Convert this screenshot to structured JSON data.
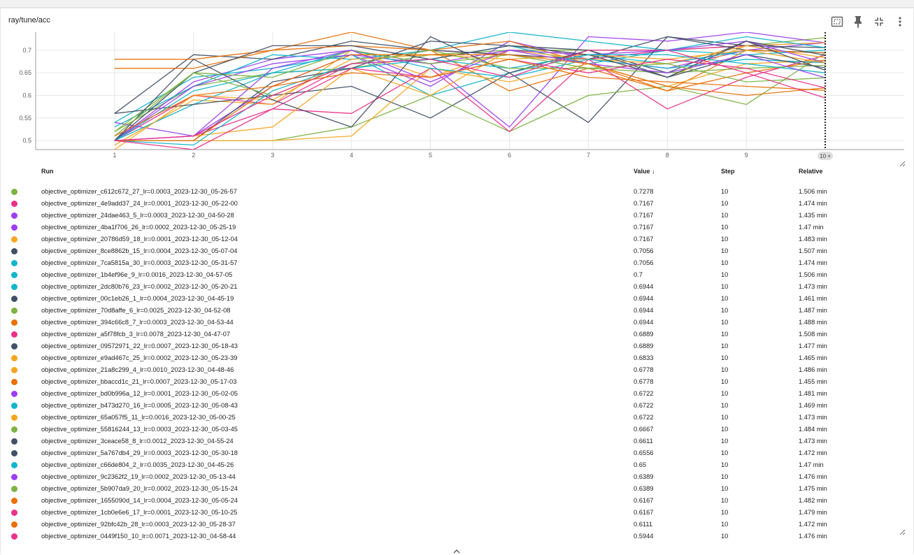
{
  "card": {
    "title": "ray/tune/acc"
  },
  "toolbar": [
    "fit-domain-icon",
    "pin-icon",
    "collapse-icon",
    "more-vert-icon"
  ],
  "table": {
    "headers": {
      "run": "Run",
      "value": "Value ↓",
      "step": "Step",
      "relative": "Relative"
    },
    "rows": [
      {
        "run": "objective_optimizer_c612c672_27_lr=0.0003_2023-12-30_05-26-57",
        "value": "0.7278",
        "step": "10",
        "relative": "1.506 min",
        "color": "#7cb342"
      },
      {
        "run": "objective_optimizer_4e9add37_24_lr=0.0001_2023-12-30_05-22-00",
        "value": "0.7167",
        "step": "10",
        "relative": "1.474 min",
        "color": "#e8328a"
      },
      {
        "run": "objective_optimizer_24dae463_5_lr=0.0003_2023-12-30_04-50-28",
        "value": "0.7167",
        "step": "10",
        "relative": "1.435 min",
        "color": "#9c3ff0"
      },
      {
        "run": "objective_optimizer_4ba1f706_26_lr=0.0002_2023-12-30_05-25-19",
        "value": "0.7167",
        "step": "10",
        "relative": "1.47 min",
        "color": "#9c3ff0"
      },
      {
        "run": "objective_optimizer_20786d59_18_lr=0.0001_2023-12-30_05-12-04",
        "value": "0.7167",
        "step": "10",
        "relative": "1.483 min",
        "color": "#f5a623"
      },
      {
        "run": "objective_optimizer_8ce8862b_15_lr=0.0004_2023-12-30_05-07-04",
        "value": "0.7056",
        "step": "10",
        "relative": "1.507 min",
        "color": "#425066"
      },
      {
        "run": "objective_optimizer_7ca5815a_30_lr=0.0003_2023-12-30_05-31-57",
        "value": "0.7056",
        "step": "10",
        "relative": "1.474 min",
        "color": "#12b5cb"
      },
      {
        "run": "objective_optimizer_1b4ef96e_9_lr=0.0016_2023-12-30_04-57-05",
        "value": "0.7",
        "step": "10",
        "relative": "1.506 min",
        "color": "#12b5cb"
      },
      {
        "run": "objective_optimizer_2dc80b76_23_lr=0.0002_2023-12-30_05-20-21",
        "value": "0.6944",
        "step": "10",
        "relative": "1.473 min",
        "color": "#12b5cb"
      },
      {
        "run": "objective_optimizer_00c1eb26_1_lr=0.0004_2023-12-30_04-45-19",
        "value": "0.6944",
        "step": "10",
        "relative": "1.461 min",
        "color": "#425066"
      },
      {
        "run": "objective_optimizer_70d8affe_6_lr=0.0025_2023-12-30_04-52-08",
        "value": "0.6944",
        "step": "10",
        "relative": "1.487 min",
        "color": "#7cb342"
      },
      {
        "run": "objective_optimizer_394c66c8_7_lr=0.0003_2023-12-30_04-53-44",
        "value": "0.6944",
        "step": "10",
        "relative": "1.488 min",
        "color": "#e8710a"
      },
      {
        "run": "objective_optimizer_a5f78fcb_3_lr=0.0078_2023-12-30_04-47-07",
        "value": "0.6889",
        "step": "10",
        "relative": "1.508 min",
        "color": "#e8328a"
      },
      {
        "run": "objective_optimizer_09572971_22_lr=0.0007_2023-12-30_05-18-43",
        "value": "0.6889",
        "step": "10",
        "relative": "1.477 min",
        "color": "#425066"
      },
      {
        "run": "objective_optimizer_e9ad467c_25_lr=0.0002_2023-12-30_05-23-39",
        "value": "0.6833",
        "step": "10",
        "relative": "1.465 min",
        "color": "#f5a623"
      },
      {
        "run": "objective_optimizer_21a8c299_4_lr=0.0010_2023-12-30_04-48-46",
        "value": "0.6778",
        "step": "10",
        "relative": "1.486 min",
        "color": "#f5a623"
      },
      {
        "run": "objective_optimizer_bbaccd1c_21_lr=0.0007_2023-12-30_05-17-03",
        "value": "0.6778",
        "step": "10",
        "relative": "1.455 min",
        "color": "#e8710a"
      },
      {
        "run": "objective_optimizer_bd0b996a_12_lr=0.0001_2023-12-30_05-02-05",
        "value": "0.6722",
        "step": "10",
        "relative": "1.481 min",
        "color": "#9c3ff0"
      },
      {
        "run": "objective_optimizer_b473d270_16_lr=0.0005_2023-12-30_05-08-43",
        "value": "0.6722",
        "step": "10",
        "relative": "1.469 min",
        "color": "#12b5cb"
      },
      {
        "run": "objective_optimizer_65a057f5_11_lr=0.0016_2023-12-30_05-00-25",
        "value": "0.6722",
        "step": "10",
        "relative": "1.473 min",
        "color": "#f5a623"
      },
      {
        "run": "objective_optimizer_55816244_13_lr=0.0003_2023-12-30_05-03-45",
        "value": "0.6667",
        "step": "10",
        "relative": "1.484 min",
        "color": "#7cb342"
      },
      {
        "run": "objective_optimizer_3ceace58_8_lr=0.0012_2023-12-30_04-55-24",
        "value": "0.6611",
        "step": "10",
        "relative": "1.473 min",
        "color": "#425066"
      },
      {
        "run": "objective_optimizer_5a767db4_29_lr=0.0003_2023-12-30_05-30-18",
        "value": "0.6556",
        "step": "10",
        "relative": "1.472 min",
        "color": "#425066"
      },
      {
        "run": "objective_optimizer_c66de804_2_lr=0.0035_2023-12-30_04-45-26",
        "value": "0.65",
        "step": "10",
        "relative": "1.47 min",
        "color": "#12b5cb"
      },
      {
        "run": "objective_optimizer_9c2362f2_19_lr=0.0002_2023-12-30_05-13-44",
        "value": "0.6389",
        "step": "10",
        "relative": "1.476 min",
        "color": "#9c3ff0"
      },
      {
        "run": "objective_optimizer_5b907da9_20_lr=0.0002_2023-12-30_05-15-24",
        "value": "0.6389",
        "step": "10",
        "relative": "1.475 min",
        "color": "#7cb342"
      },
      {
        "run": "objective_optimizer_1655090d_14_lr=0.0004_2023-12-30_05-05-24",
        "value": "0.6167",
        "step": "10",
        "relative": "1.482 min",
        "color": "#e8710a"
      },
      {
        "run": "objective_optimizer_1cb0e6e6_17_lr=0.0001_2023-12-30_05-10-25",
        "value": "0.6167",
        "step": "10",
        "relative": "1.479 min",
        "color": "#e8328a"
      },
      {
        "run": "objective_optimizer_92bfc42b_28_lr=0.0003_2023-12-30_05-28-37",
        "value": "0.6111",
        "step": "10",
        "relative": "1.472 min",
        "color": "#e8710a"
      },
      {
        "run": "objective_optimizer_0449f150_10_lr=0.0071_2023-12-30_04-58-44",
        "value": "0.5944",
        "step": "10",
        "relative": "1.476 min",
        "color": "#e8328a"
      }
    ]
  },
  "chart_data": {
    "type": "line",
    "title": "ray/tune/acc",
    "x": [
      1,
      2,
      3,
      4,
      5,
      6,
      7,
      8,
      9,
      10
    ],
    "xticks": [
      "1",
      "2",
      "3",
      "4",
      "5",
      "6",
      "7",
      "8",
      "9"
    ],
    "yticks": [
      "0.5",
      "0.55",
      "0.6",
      "0.65",
      "0.7"
    ],
    "xlim": [
      0.0,
      11.0
    ],
    "ylim": [
      0.48,
      0.74
    ],
    "hover_step_label": "10 ×",
    "series": [
      {
        "name": "c612c672_27",
        "color": "#7cb342",
        "values": [
          0.52,
          0.62,
          0.65,
          0.66,
          0.69,
          0.7,
          0.7,
          0.7,
          0.71,
          0.7278
        ]
      },
      {
        "name": "4e9add37_24",
        "color": "#e8328a",
        "values": [
          0.5,
          0.6,
          0.58,
          0.67,
          0.7,
          0.69,
          0.68,
          0.7,
          0.71,
          0.7167
        ]
      },
      {
        "name": "24dae463_5",
        "color": "#9c3ff0",
        "values": [
          0.54,
          0.51,
          0.62,
          0.69,
          0.62,
          0.72,
          0.68,
          0.66,
          0.7,
          0.7167
        ]
      },
      {
        "name": "4ba1f706_26",
        "color": "#9c3ff0",
        "values": [
          0.5,
          0.63,
          0.68,
          0.7,
          0.67,
          0.53,
          0.73,
          0.72,
          0.74,
          0.7167
        ]
      },
      {
        "name": "20786d59_18",
        "color": "#f5a623",
        "values": [
          0.49,
          0.59,
          0.58,
          0.7,
          0.64,
          0.7,
          0.69,
          0.64,
          0.71,
          0.7167
        ]
      },
      {
        "name": "8ce8862b_15",
        "color": "#425066",
        "values": [
          0.56,
          0.69,
          0.68,
          0.72,
          0.7,
          0.69,
          0.68,
          0.73,
          0.71,
          0.7056
        ]
      },
      {
        "name": "7ca5815a_30",
        "color": "#12b5cb",
        "values": [
          0.53,
          0.62,
          0.69,
          0.68,
          0.7,
          0.74,
          0.72,
          0.7,
          0.73,
          0.7056
        ]
      },
      {
        "name": "1b4ef96e_9",
        "color": "#12b5cb",
        "values": [
          0.5,
          0.58,
          0.65,
          0.66,
          0.68,
          0.71,
          0.67,
          0.7,
          0.69,
          0.7
        ]
      },
      {
        "name": "2dc80b76_23",
        "color": "#12b5cb",
        "values": [
          0.54,
          0.64,
          0.66,
          0.69,
          0.6,
          0.65,
          0.69,
          0.67,
          0.7,
          0.6944
        ]
      },
      {
        "name": "00c1eb26_1",
        "color": "#425066",
        "values": [
          0.56,
          0.58,
          0.6,
          0.62,
          0.55,
          0.65,
          0.54,
          0.73,
          0.7,
          0.6944
        ]
      },
      {
        "name": "70d8affe_6",
        "color": "#7cb342",
        "values": [
          0.5,
          0.5,
          0.5,
          0.53,
          0.6,
          0.52,
          0.6,
          0.62,
          0.58,
          0.6944
        ]
      },
      {
        "name": "394c66c8_7",
        "color": "#e8710a",
        "values": [
          0.66,
          0.66,
          0.7,
          0.74,
          0.7,
          0.61,
          0.66,
          0.61,
          0.7,
          0.6944
        ]
      },
      {
        "name": "a5f78fcb_3",
        "color": "#e8328a",
        "values": [
          0.5,
          0.51,
          0.57,
          0.56,
          0.66,
          0.52,
          0.68,
          0.57,
          0.64,
          0.6889
        ]
      },
      {
        "name": "09572971_22",
        "color": "#425066",
        "values": [
          0.5,
          0.5,
          0.63,
          0.66,
          0.72,
          0.71,
          0.7,
          0.65,
          0.72,
          0.6889
        ]
      },
      {
        "name": "e9ad467c_25",
        "color": "#f5a623",
        "values": [
          0.5,
          0.51,
          0.53,
          0.66,
          0.6,
          0.7,
          0.68,
          0.67,
          0.71,
          0.6833
        ]
      },
      {
        "name": "21a8c299_4",
        "color": "#f5a623",
        "values": [
          0.5,
          0.5,
          0.5,
          0.51,
          0.66,
          0.63,
          0.67,
          0.62,
          0.67,
          0.6778
        ]
      },
      {
        "name": "bbaccd1c_21",
        "color": "#e8710a",
        "values": [
          0.68,
          0.68,
          0.7,
          0.71,
          0.7,
          0.72,
          0.67,
          0.61,
          0.65,
          0.6778
        ]
      },
      {
        "name": "bd0b996a_12",
        "color": "#9c3ff0",
        "values": [
          0.5,
          0.62,
          0.67,
          0.69,
          0.67,
          0.7,
          0.69,
          0.7,
          0.72,
          0.6722
        ]
      },
      {
        "name": "b473d270_16",
        "color": "#12b5cb",
        "values": [
          0.5,
          0.61,
          0.65,
          0.7,
          0.66,
          0.64,
          0.68,
          0.66,
          0.68,
          0.6722
        ]
      },
      {
        "name": "65a057f5_11",
        "color": "#f5a623",
        "values": [
          0.48,
          0.6,
          0.59,
          0.68,
          0.69,
          0.68,
          0.69,
          0.68,
          0.7,
          0.6722
        ]
      },
      {
        "name": "55816244_13",
        "color": "#7cb342",
        "values": [
          0.52,
          0.65,
          0.64,
          0.7,
          0.67,
          0.69,
          0.66,
          0.65,
          0.66,
          0.6667
        ]
      },
      {
        "name": "3ceace58_8",
        "color": "#425066",
        "values": [
          0.5,
          0.68,
          0.59,
          0.53,
          0.73,
          0.65,
          0.7,
          0.64,
          0.69,
          0.6611
        ]
      },
      {
        "name": "5a767db4_29",
        "color": "#425066",
        "values": [
          0.5,
          0.65,
          0.71,
          0.71,
          0.68,
          0.71,
          0.69,
          0.64,
          0.72,
          0.6556
        ]
      },
      {
        "name": "c66de804_2",
        "color": "#12b5cb",
        "values": [
          0.5,
          0.49,
          0.61,
          0.67,
          0.68,
          0.66,
          0.69,
          0.69,
          0.67,
          0.65
        ]
      },
      {
        "name": "9c2362f2_19",
        "color": "#9c3ff0",
        "values": [
          0.5,
          0.51,
          0.66,
          0.7,
          0.63,
          0.7,
          0.67,
          0.65,
          0.69,
          0.6389
        ]
      },
      {
        "name": "5b907da9_20",
        "color": "#7cb342",
        "values": [
          0.51,
          0.65,
          0.6,
          0.67,
          0.7,
          0.66,
          0.66,
          0.67,
          0.63,
          0.6389
        ]
      },
      {
        "name": "1655090d_14",
        "color": "#e8710a",
        "values": [
          0.51,
          0.6,
          0.62,
          0.69,
          0.69,
          0.69,
          0.67,
          0.62,
          0.6,
          0.6167
        ]
      },
      {
        "name": "1cb0e6e6_17",
        "color": "#e8328a",
        "values": [
          0.5,
          0.48,
          0.57,
          0.66,
          0.64,
          0.68,
          0.65,
          0.68,
          0.66,
          0.6167
        ]
      },
      {
        "name": "92bfc42b_28",
        "color": "#e8710a",
        "values": [
          0.5,
          0.5,
          0.62,
          0.65,
          0.64,
          0.68,
          0.64,
          0.63,
          0.62,
          0.6111
        ]
      },
      {
        "name": "0449f150_10",
        "color": "#e8328a",
        "values": [
          0.5,
          0.51,
          0.6,
          0.67,
          0.68,
          0.64,
          0.7,
          0.7,
          0.65,
          0.5944
        ]
      }
    ]
  }
}
